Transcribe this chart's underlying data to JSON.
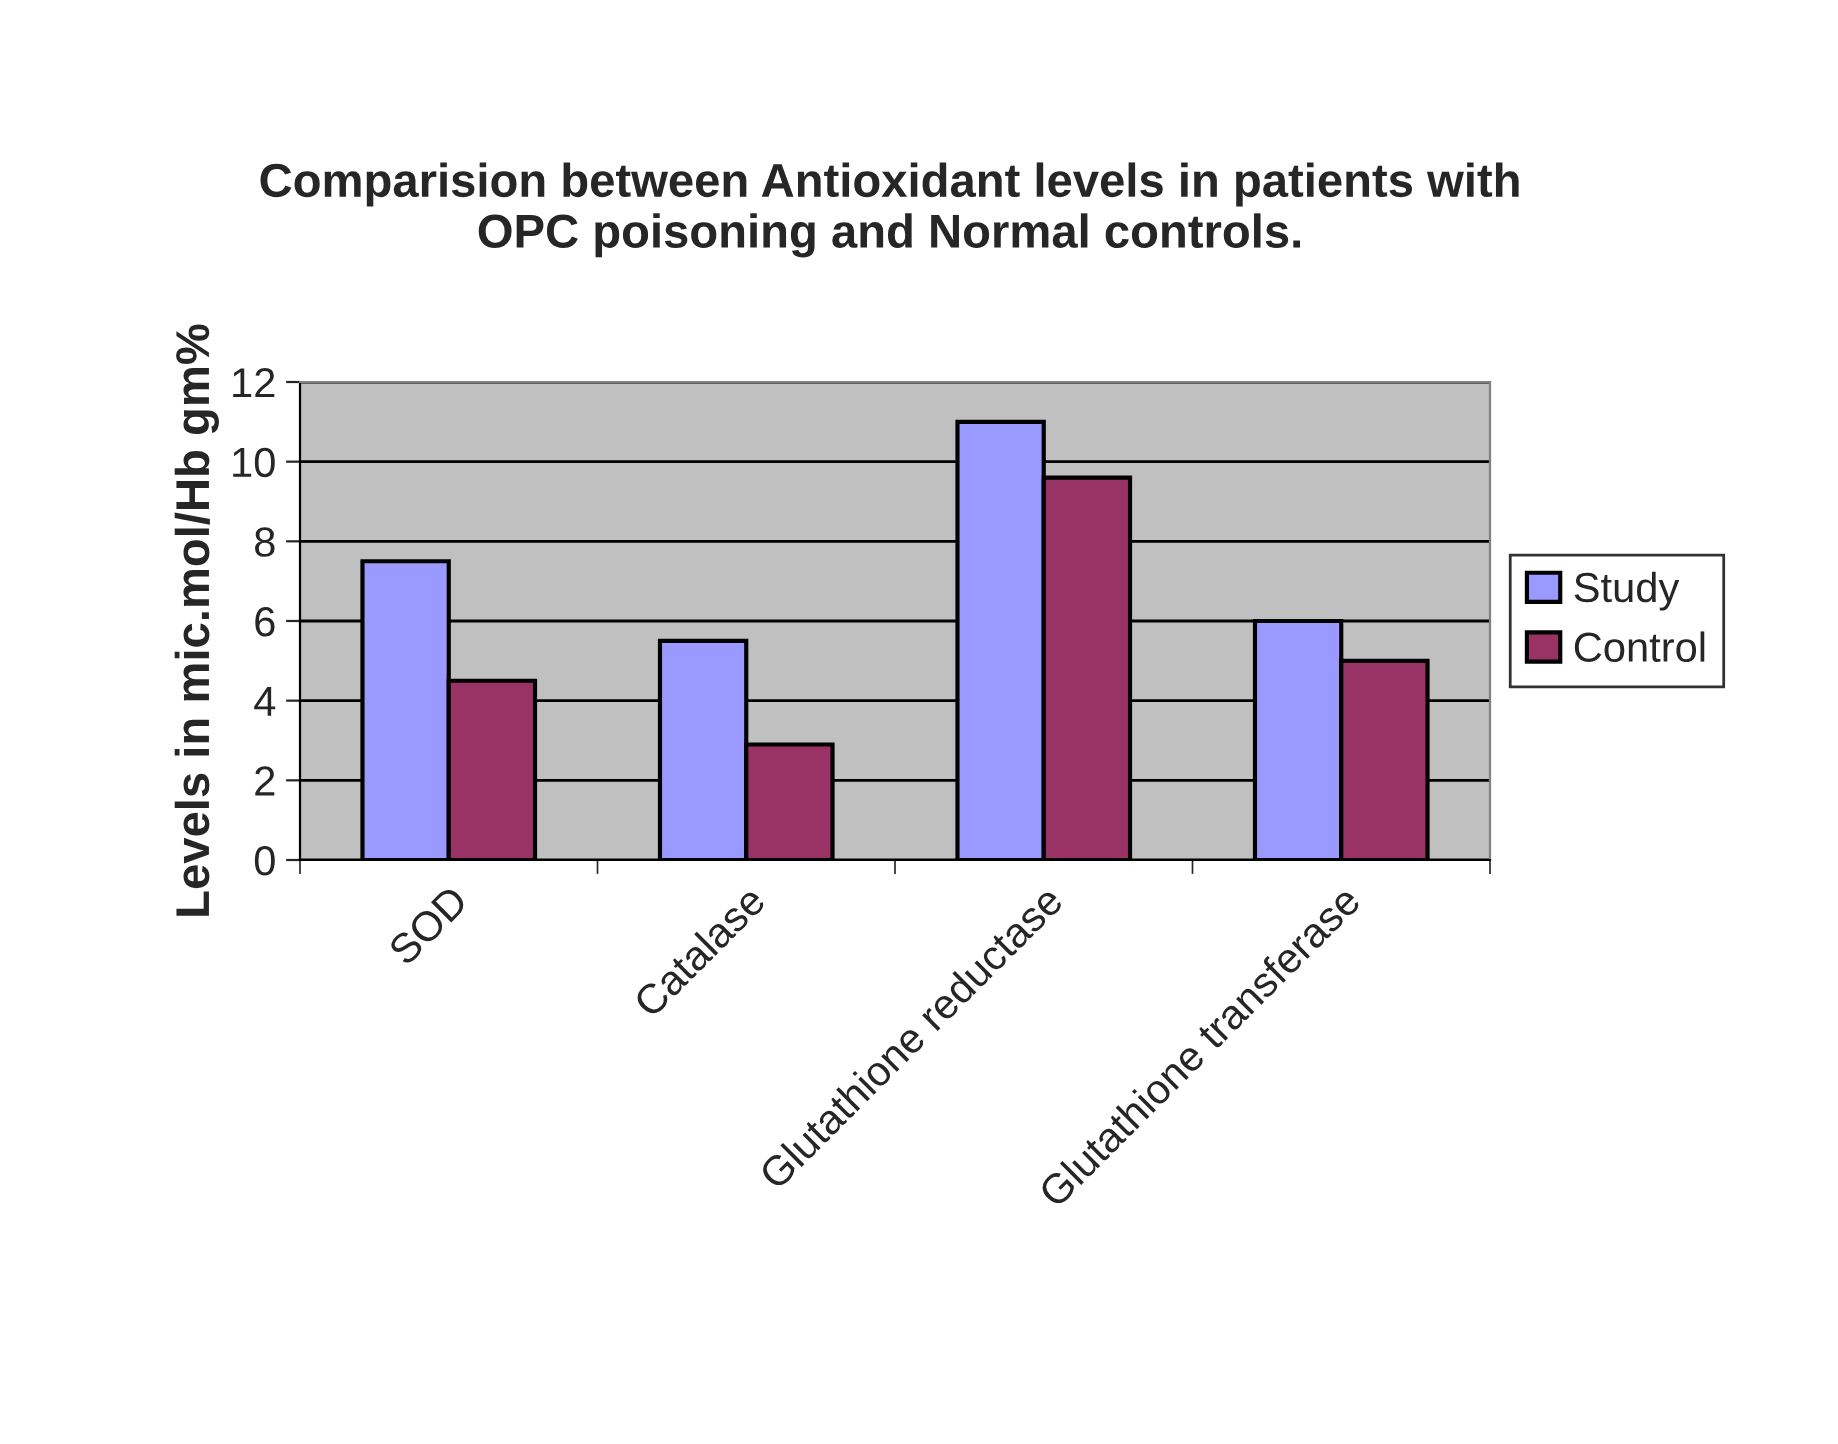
{
  "chart_data": {
    "type": "bar",
    "title": "Comparision between Antioxidant levels in patients with OPC poisoning and Normal controls.",
    "ylabel": "Levels in mic.mol/Hb gm%",
    "categories": [
      "SOD",
      "Catalase",
      "Glutathione reductase",
      "Glutathione transferase"
    ],
    "series": [
      {
        "name": "Study",
        "color": "#9999ff",
        "values": [
          7.5,
          5.5,
          11,
          6
        ]
      },
      {
        "name": "Control",
        "color": "#993366",
        "values": [
          4.5,
          2.9,
          9.6,
          5
        ]
      }
    ],
    "ylim": [
      0,
      12
    ],
    "yticks": [
      0,
      2,
      4,
      6,
      8,
      10,
      12
    ],
    "grid": "y",
    "legend": "right"
  }
}
